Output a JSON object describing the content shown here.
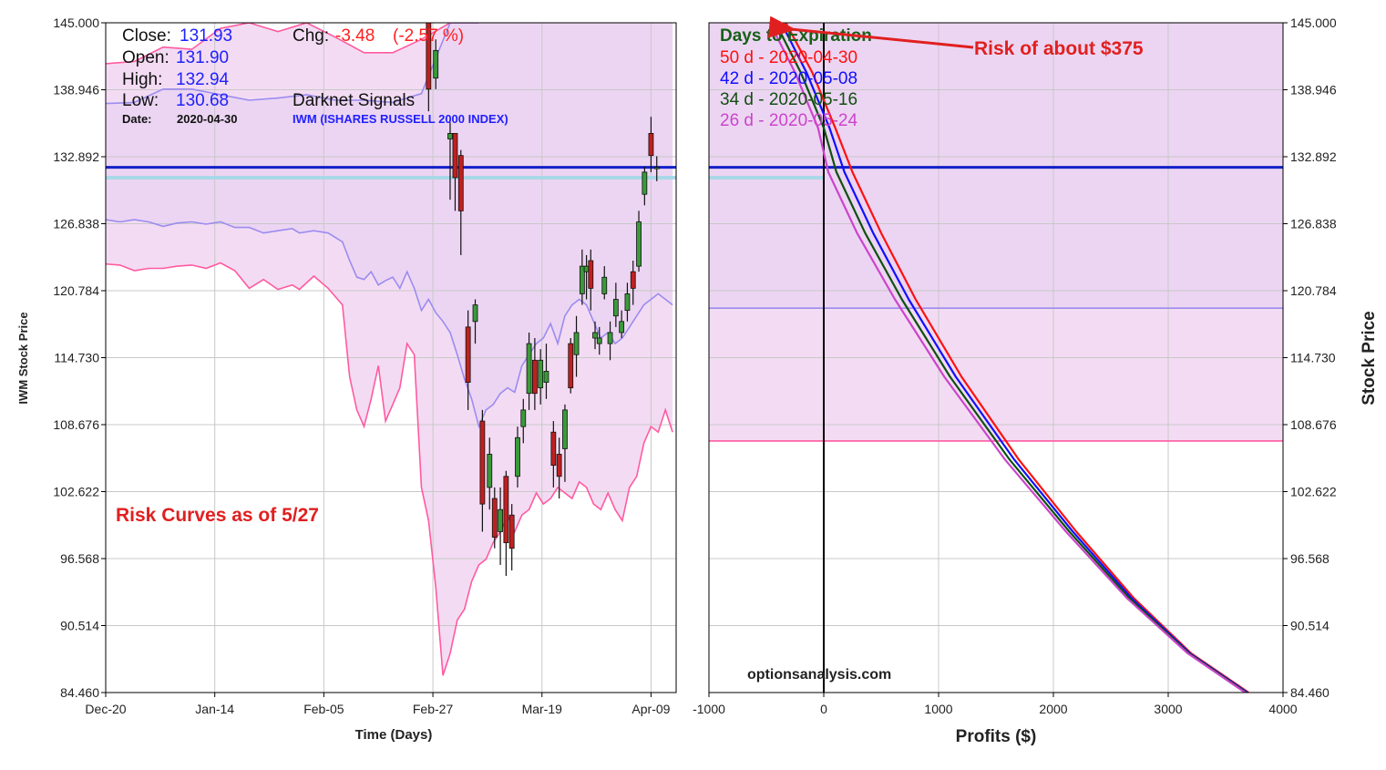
{
  "colors": {
    "band_fill": "#f3dcf3",
    "band_fill_upper": "#ecd5f2",
    "outer_band": "#ff5aa0",
    "inner_band": "#9b8cf0",
    "close_line": "#1020c8",
    "prev_line": "#a8d8e8",
    "candle_up": "#3a9a3a",
    "candle_down": "#c02020",
    "grid": "#c8c8c8",
    "annot_red": "#e02020",
    "curve_50": "#ff1010",
    "curve_42": "#1010ff",
    "curve_34": "#105010",
    "curve_26": "#cc44cc"
  },
  "info": {
    "close_label": "Close:",
    "close_value": "131.93",
    "open_label": "Open:",
    "open_value": "131.90",
    "high_label": "High:",
    "high_value": "132.94",
    "low_label": "Low:",
    "low_value": "130.68",
    "date_label": "Date:",
    "date_value": "2020-04-30",
    "chg_label": "Chg:",
    "chg_value": "-3.48",
    "chg_pct": "(-2.57 %)",
    "source": "Darknet Signals",
    "symbol": "IWM (ISHARES RUSSELL 2000 INDEX)"
  },
  "annotations": {
    "risk_curves": "Risk Curves as of 5/27",
    "risk_amount": "Risk of about $375",
    "watermark": "optionsanalysis.com"
  },
  "chart_data": [
    {
      "type": "candlestick",
      "xlabel": "Time (Days)",
      "ylabel": "IWM Stock Price",
      "ylim": [
        84.46,
        145.0
      ],
      "y_ticks": [
        "145.000",
        "138.946",
        "132.892",
        "126.838",
        "120.784",
        "114.730",
        "108.676",
        "102.622",
        "96.568",
        "90.514",
        "84.460"
      ],
      "x_ticks": [
        "Dec-20",
        "Jan-14",
        "Feb-05",
        "Feb-27",
        "Mar-19",
        "Apr-09"
      ],
      "grid": true,
      "close_level": 131.93,
      "prev_close_level": 131.0,
      "upper_outer_band": [
        [
          0,
          141.3
        ],
        [
          4,
          141.5
        ],
        [
          8,
          142.8
        ],
        [
          12,
          142.6
        ],
        [
          16,
          144.5
        ],
        [
          20,
          145.0
        ],
        [
          24,
          144.2
        ],
        [
          28,
          145.0
        ],
        [
          32,
          143.7
        ],
        [
          36,
          142.3
        ],
        [
          40,
          142.3
        ],
        [
          44,
          143.5
        ],
        [
          48,
          145.0
        ],
        [
          52,
          145.0
        ]
      ],
      "upper_inner_band": [
        [
          0,
          137.7
        ],
        [
          4,
          137.8
        ],
        [
          8,
          139.0
        ],
        [
          12,
          139.0
        ],
        [
          16,
          138.5
        ],
        [
          20,
          138.0
        ],
        [
          24,
          138.2
        ],
        [
          28,
          138.5
        ],
        [
          32,
          138.0
        ],
        [
          36,
          138.0
        ],
        [
          40,
          137.8
        ],
        [
          44,
          138.6
        ],
        [
          48,
          145.0
        ],
        [
          52,
          145.0
        ]
      ],
      "lower_inner_band": [
        [
          0,
          127.2
        ],
        [
          2,
          127.0
        ],
        [
          4,
          127.2
        ],
        [
          6,
          127.0
        ],
        [
          8,
          126.6
        ],
        [
          10,
          126.9
        ],
        [
          12,
          127.0
        ],
        [
          14,
          126.8
        ],
        [
          16,
          127.0
        ],
        [
          18,
          126.5
        ],
        [
          20,
          126.5
        ],
        [
          22,
          126.0
        ],
        [
          24,
          126.2
        ],
        [
          26,
          126.4
        ],
        [
          27,
          126.0
        ],
        [
          29,
          126.2
        ],
        [
          31,
          126.0
        ],
        [
          33,
          125.2
        ],
        [
          34,
          123.5
        ],
        [
          35,
          122.0
        ],
        [
          36,
          121.8
        ],
        [
          37,
          122.5
        ],
        [
          38,
          121.3
        ],
        [
          39,
          121.7
        ],
        [
          40,
          122.0
        ],
        [
          41,
          121.0
        ],
        [
          42,
          122.5
        ],
        [
          43,
          121.0
        ],
        [
          44,
          119.0
        ],
        [
          45,
          120.0
        ],
        [
          46,
          118.8
        ],
        [
          47,
          118.0
        ],
        [
          48,
          117.0
        ],
        [
          49,
          115.0
        ],
        [
          50,
          112.8
        ],
        [
          51,
          111.0
        ],
        [
          52,
          108.5
        ],
        [
          53,
          110.0
        ],
        [
          54,
          110.5
        ],
        [
          55,
          111.5
        ],
        [
          56,
          112.0
        ],
        [
          57,
          111.6
        ],
        [
          58,
          114.0
        ],
        [
          59,
          115.0
        ],
        [
          60,
          116.0
        ],
        [
          61,
          116.5
        ],
        [
          62,
          117.8
        ],
        [
          63,
          116.0
        ],
        [
          64,
          118.5
        ],
        [
          65,
          119.5
        ],
        [
          66,
          120.0
        ],
        [
          67,
          119.5
        ],
        [
          68,
          118.0
        ],
        [
          69,
          116.5
        ],
        [
          70,
          117.0
        ],
        [
          71,
          116.0
        ],
        [
          72,
          116.5
        ],
        [
          73,
          117.5
        ],
        [
          74,
          118.5
        ],
        [
          75,
          119.5
        ],
        [
          76,
          120.0
        ],
        [
          77,
          120.5
        ],
        [
          78,
          120.0
        ],
        [
          79,
          119.5
        ]
      ],
      "lower_outer_band": [
        [
          0,
          123.2
        ],
        [
          2,
          123.1
        ],
        [
          4,
          122.6
        ],
        [
          6,
          122.8
        ],
        [
          8,
          122.8
        ],
        [
          10,
          123.0
        ],
        [
          12,
          123.1
        ],
        [
          14,
          122.8
        ],
        [
          16,
          123.3
        ],
        [
          18,
          122.6
        ],
        [
          20,
          121.0
        ],
        [
          22,
          121.8
        ],
        [
          24,
          120.9
        ],
        [
          26,
          121.3
        ],
        [
          27,
          120.9
        ],
        [
          29,
          122.1
        ],
        [
          31,
          121.0
        ],
        [
          33,
          119.5
        ],
        [
          34,
          113.0
        ],
        [
          35,
          110.0
        ],
        [
          36,
          108.5
        ],
        [
          37,
          111.0
        ],
        [
          38,
          114.0
        ],
        [
          39,
          109.0
        ],
        [
          40,
          110.5
        ],
        [
          41,
          112.0
        ],
        [
          42,
          116.0
        ],
        [
          43,
          115.0
        ],
        [
          44,
          103.0
        ],
        [
          45,
          100.0
        ],
        [
          46,
          94.0
        ],
        [
          47,
          86.0
        ],
        [
          48,
          88.0
        ],
        [
          49,
          91.0
        ],
        [
          50,
          92.0
        ],
        [
          51,
          94.5
        ],
        [
          52,
          96.0
        ],
        [
          53,
          96.5
        ],
        [
          54,
          98.0
        ],
        [
          55,
          99.0
        ],
        [
          56,
          100.5
        ],
        [
          57,
          99.0
        ],
        [
          58,
          100.5
        ],
        [
          59,
          101.0
        ],
        [
          60,
          102.5
        ],
        [
          61,
          101.5
        ],
        [
          62,
          102.0
        ],
        [
          63,
          103.0
        ],
        [
          64,
          102.5
        ],
        [
          65,
          102.0
        ],
        [
          66,
          103.5
        ],
        [
          67,
          103.0
        ],
        [
          68,
          101.5
        ],
        [
          69,
          101.0
        ],
        [
          70,
          102.5
        ],
        [
          71,
          101.0
        ],
        [
          72,
          100.0
        ],
        [
          73,
          103.0
        ],
        [
          74,
          104.0
        ],
        [
          75,
          107.0
        ],
        [
          76,
          108.5
        ],
        [
          77,
          108.0
        ],
        [
          78,
          110.0
        ],
        [
          79,
          108.0
        ]
      ],
      "candles": [
        [
          45,
          145.0,
          139.0,
          145.5,
          137.0
        ],
        [
          46,
          140.0,
          142.5,
          143.5,
          139.0
        ],
        [
          48,
          134.5,
          135.0,
          136.0,
          129.0
        ],
        [
          48.7,
          135.0,
          131.0,
          135.0,
          128.0
        ],
        [
          49.5,
          133.0,
          128.0,
          133.5,
          124.0
        ],
        [
          50.5,
          117.5,
          112.5,
          119.0,
          110.0
        ],
        [
          51.5,
          118.0,
          119.5,
          120.0,
          116.0
        ],
        [
          52.5,
          109.0,
          101.5,
          110.0,
          99.0
        ],
        [
          53.5,
          103.0,
          106.0,
          107.5,
          101.0
        ],
        [
          54.2,
          102.0,
          98.5,
          103.0,
          97.5
        ],
        [
          55.0,
          99.0,
          101.0,
          103.0,
          96.0
        ],
        [
          55.8,
          104.0,
          98.0,
          104.5,
          95.0
        ],
        [
          56.6,
          100.5,
          97.5,
          101.5,
          95.5
        ],
        [
          57.4,
          104.0,
          107.5,
          108.5,
          103.0
        ],
        [
          58.2,
          108.5,
          110.0,
          111.0,
          107.0
        ],
        [
          59.0,
          111.5,
          116.0,
          117.0,
          110.0
        ],
        [
          59.8,
          114.5,
          111.5,
          116.5,
          110.0
        ],
        [
          60.6,
          112.0,
          114.5,
          115.5,
          110.5
        ],
        [
          61.4,
          112.5,
          113.5,
          116.0,
          111.0
        ],
        [
          62.4,
          108.0,
          105.0,
          109.0,
          103.0
        ],
        [
          63.2,
          106.0,
          104.0,
          107.5,
          102.0
        ],
        [
          64.0,
          106.5,
          110.0,
          110.5,
          103.5
        ],
        [
          64.8,
          116.0,
          112.0,
          116.5,
          111.5
        ],
        [
          65.6,
          115.0,
          117.0,
          118.5,
          113.0
        ],
        [
          66.4,
          120.5,
          123.0,
          124.5,
          119.5
        ],
        [
          67.0,
          122.5,
          123.0,
          124.0,
          120.0
        ],
        [
          67.6,
          123.5,
          121.0,
          124.5,
          119.0
        ],
        [
          68.2,
          116.5,
          117.0,
          118.0,
          115.5
        ],
        [
          68.8,
          116.0,
          116.5,
          117.5,
          115.0
        ],
        [
          69.5,
          120.5,
          122.0,
          123.0,
          120.0
        ],
        [
          70.3,
          116.0,
          117.0,
          118.0,
          114.5
        ],
        [
          71.1,
          118.5,
          120.0,
          121.5,
          117.5
        ],
        [
          71.9,
          117.0,
          118.0,
          119.0,
          116.5
        ],
        [
          72.7,
          119.0,
          120.5,
          121.5,
          118.0
        ],
        [
          73.5,
          122.5,
          121.0,
          123.5,
          119.5
        ],
        [
          74.3,
          123.0,
          127.0,
          128.0,
          122.5
        ],
        [
          75.1,
          129.5,
          131.5,
          132.0,
          128.5
        ],
        [
          76.0,
          135.0,
          133.0,
          136.5,
          131.5
        ],
        [
          76.8,
          131.9,
          131.93,
          132.94,
          130.68
        ]
      ]
    },
    {
      "type": "line",
      "xlabel": "Profits ($)",
      "ylabel": "Stock Price",
      "xlim": [
        -1000,
        4000
      ],
      "ylim": [
        84.46,
        145.0
      ],
      "x_ticks": [
        "-1000",
        "0",
        "1000",
        "2000",
        "3000",
        "4000"
      ],
      "y_ticks": [
        "145.000",
        "138.946",
        "132.892",
        "126.838",
        "120.784",
        "114.730",
        "108.676",
        "102.622",
        "96.568",
        "90.514",
        "84.460"
      ],
      "grid": true,
      "close_level": 131.93,
      "prev_close_level": 131.0,
      "upper_band_level": 119.2,
      "lower_band_level": 107.2,
      "legend_title": "Days to Expiration",
      "series": [
        {
          "name": "50 d - 2020-04-30",
          "color_key": "curve_50",
          "points": [
            [
              -330,
              145.0
            ],
            [
              -100,
              140.5
            ],
            [
              100,
              135.5
            ],
            [
              250,
              131.5
            ],
            [
              500,
              126.0
            ],
            [
              800,
              120.0
            ],
            [
              1200,
              113.0
            ],
            [
              1700,
              105.5
            ],
            [
              2200,
              99.0
            ],
            [
              2700,
              93.0
            ],
            [
              3200,
              88.0
            ],
            [
              3700,
              84.46
            ]
          ]
        },
        {
          "name": "42 d - 2020-05-08",
          "color_key": "curve_42",
          "points": [
            [
              -370,
              145.0
            ],
            [
              -150,
              140.5
            ],
            [
              50,
              135.5
            ],
            [
              180,
              131.5
            ],
            [
              430,
              126.0
            ],
            [
              740,
              120.0
            ],
            [
              1150,
              113.0
            ],
            [
              1660,
              105.5
            ],
            [
              2170,
              99.0
            ],
            [
              2680,
              93.0
            ],
            [
              3190,
              88.0
            ],
            [
              3690,
              84.46
            ]
          ]
        },
        {
          "name": "34 d - 2020-05-16",
          "color_key": "curve_34",
          "points": [
            [
              -420,
              145.0
            ],
            [
              -200,
              140.5
            ],
            [
              0,
              135.5
            ],
            [
              110,
              131.5
            ],
            [
              360,
              126.0
            ],
            [
              680,
              120.0
            ],
            [
              1100,
              113.0
            ],
            [
              1620,
              105.5
            ],
            [
              2140,
              99.0
            ],
            [
              2660,
              93.0
            ],
            [
              3180,
              88.0
            ],
            [
              3680,
              84.46
            ]
          ]
        },
        {
          "name": "26 d - 2020-05-24",
          "color_key": "curve_26",
          "points": [
            [
              -470,
              145.0
            ],
            [
              -250,
              140.5
            ],
            [
              -50,
              135.5
            ],
            [
              40,
              131.5
            ],
            [
              290,
              126.0
            ],
            [
              620,
              120.0
            ],
            [
              1050,
              113.0
            ],
            [
              1580,
              105.5
            ],
            [
              2110,
              99.0
            ],
            [
              2640,
              93.0
            ],
            [
              3170,
              88.0
            ],
            [
              3670,
              84.46
            ]
          ]
        }
      ]
    }
  ]
}
